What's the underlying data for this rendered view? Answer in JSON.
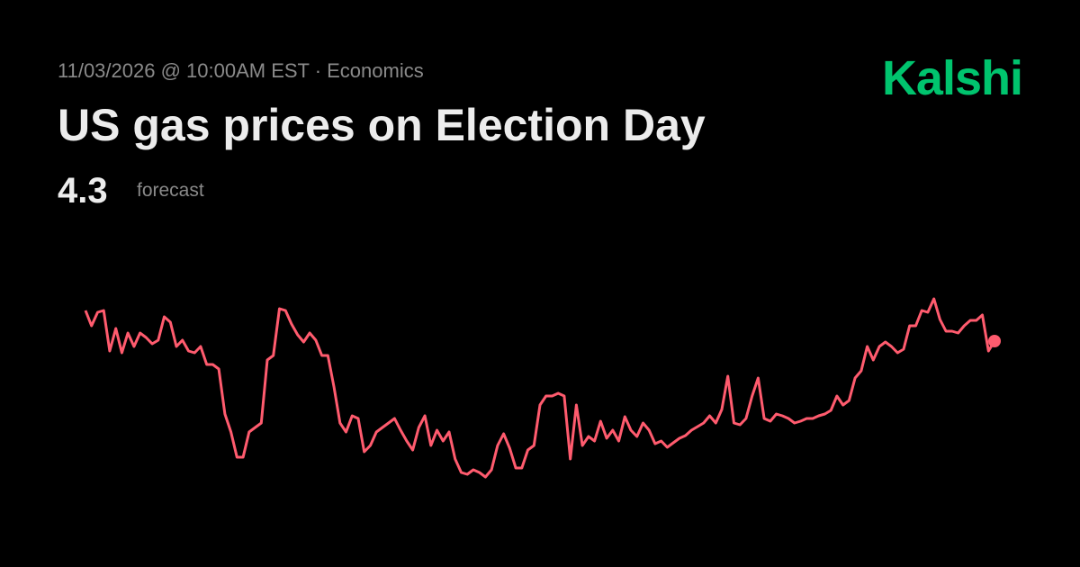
{
  "brand": "Kalshi",
  "chart_data": {
    "type": "line",
    "subtitle": "11/03/2026 @ 10:00AM EST · Economics",
    "title": "US gas prices on Election Day",
    "forecast": {
      "value": 4.3,
      "label": "forecast"
    },
    "color": "#ff5b6e",
    "ylim": [
      2.5,
      5.0
    ],
    "values": [
      4.64,
      4.47,
      4.62,
      4.64,
      4.19,
      4.44,
      4.17,
      4.39,
      4.24,
      4.39,
      4.34,
      4.27,
      4.31,
      4.57,
      4.51,
      4.24,
      4.31,
      4.19,
      4.17,
      4.24,
      4.04,
      4.04,
      3.99,
      3.49,
      3.29,
      3.01,
      3.01,
      3.29,
      3.34,
      3.39,
      4.09,
      4.14,
      4.66,
      4.64,
      4.49,
      4.37,
      4.29,
      4.39,
      4.31,
      4.14,
      4.14,
      3.79,
      3.39,
      3.29,
      3.47,
      3.44,
      3.07,
      3.14,
      3.29,
      3.34,
      3.39,
      3.44,
      3.31,
      3.19,
      3.09,
      3.34,
      3.47,
      3.14,
      3.31,
      3.19,
      3.29,
      2.99,
      2.84,
      2.82,
      2.87,
      2.84,
      2.79,
      2.87,
      3.14,
      3.27,
      3.11,
      2.89,
      2.89,
      3.09,
      3.14,
      3.59,
      3.69,
      3.69,
      3.72,
      3.69,
      2.99,
      3.59,
      3.14,
      3.24,
      3.19,
      3.41,
      3.22,
      3.31,
      3.19,
      3.46,
      3.31,
      3.24,
      3.39,
      3.31,
      3.16,
      3.19,
      3.12,
      3.17,
      3.22,
      3.25,
      3.31,
      3.35,
      3.39,
      3.47,
      3.39,
      3.54,
      3.91,
      3.39,
      3.37,
      3.44,
      3.69,
      3.89,
      3.44,
      3.41,
      3.49,
      3.47,
      3.44,
      3.39,
      3.41,
      3.44,
      3.44,
      3.47,
      3.49,
      3.53,
      3.69,
      3.59,
      3.64,
      3.89,
      3.97,
      4.24,
      4.09,
      4.24,
      4.29,
      4.24,
      4.17,
      4.21,
      4.47,
      4.47,
      4.64,
      4.62,
      4.77,
      4.54,
      4.41,
      4.41,
      4.39,
      4.47,
      4.53,
      4.53,
      4.59,
      4.19,
      4.3
    ]
  }
}
